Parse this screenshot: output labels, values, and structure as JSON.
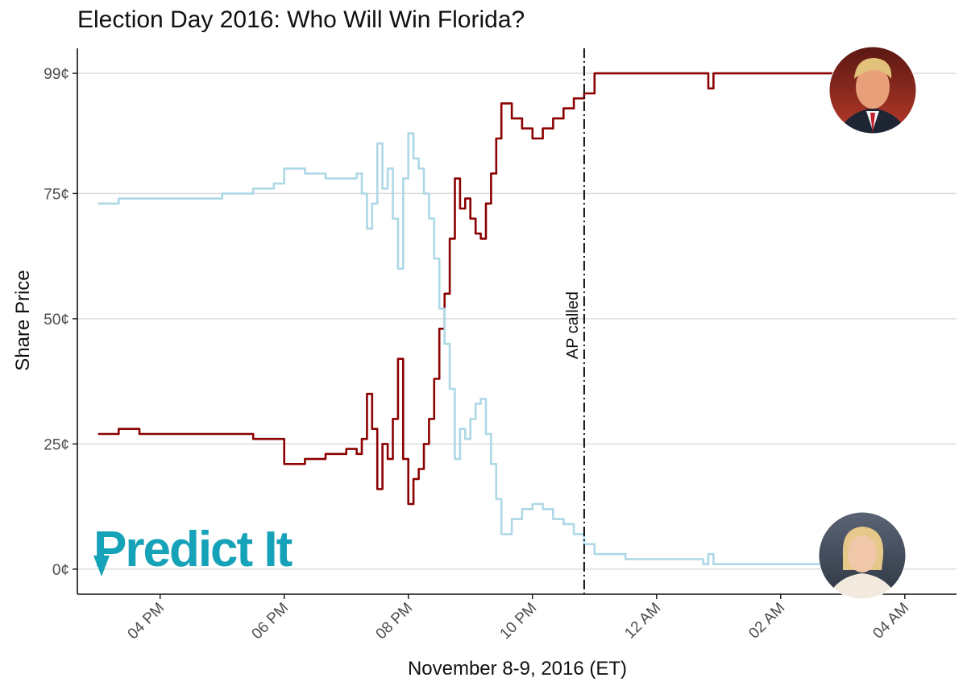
{
  "chart_data": {
    "type": "line",
    "title": "Election Day 2016: Who Will Win Florida?",
    "xlabel": "November 8-9, 2016 (ET)",
    "ylabel": "Share Price",
    "x_unit": "hours ET (Nov 8 15:00 → Nov 9 04:00)",
    "xlim": [
      "2016-11-08 14:40",
      "2016-11-09 04:50"
    ],
    "ylim": [
      -5,
      104
    ],
    "x_ticks": [
      "04 PM",
      "06 PM",
      "08 PM",
      "10 PM",
      "12 AM",
      "02 AM",
      "04 AM"
    ],
    "x_tick_times": [
      "2016-11-08 16:00",
      "2016-11-08 18:00",
      "2016-11-08 20:00",
      "2016-11-08 22:00",
      "2016-11-09 00:00",
      "2016-11-09 02:00",
      "2016-11-09 04:00"
    ],
    "y_ticks": [
      "0¢",
      "25¢",
      "50¢",
      "75¢",
      "99¢"
    ],
    "y_tick_values": [
      0,
      25,
      50,
      75,
      99
    ],
    "grid": "horizontal",
    "legend": "none",
    "series": [
      {
        "color": "#8b0000",
        "points": [
          [
            "2016-11-08 15:00",
            27
          ],
          [
            "2016-11-08 15:20",
            28
          ],
          [
            "2016-11-08 15:40",
            27
          ],
          [
            "2016-11-08 16:00",
            27
          ],
          [
            "2016-11-08 16:30",
            27
          ],
          [
            "2016-11-08 17:00",
            27
          ],
          [
            "2016-11-08 17:30",
            26
          ],
          [
            "2016-11-08 17:50",
            26
          ],
          [
            "2016-11-08 18:00",
            21
          ],
          [
            "2016-11-08 18:20",
            22
          ],
          [
            "2016-11-08 18:40",
            23
          ],
          [
            "2016-11-08 19:00",
            24
          ],
          [
            "2016-11-08 19:10",
            23
          ],
          [
            "2016-11-08 19:15",
            26
          ],
          [
            "2016-11-08 19:20",
            35
          ],
          [
            "2016-11-08 19:25",
            28
          ],
          [
            "2016-11-08 19:30",
            16
          ],
          [
            "2016-11-08 19:35",
            25
          ],
          [
            "2016-11-08 19:40",
            22
          ],
          [
            "2016-11-08 19:45",
            30
          ],
          [
            "2016-11-08 19:50",
            42
          ],
          [
            "2016-11-08 19:55",
            22
          ],
          [
            "2016-11-08 20:00",
            13
          ],
          [
            "2016-11-08 20:05",
            18
          ],
          [
            "2016-11-08 20:10",
            20
          ],
          [
            "2016-11-08 20:15",
            25
          ],
          [
            "2016-11-08 20:20",
            30
          ],
          [
            "2016-11-08 20:25",
            38
          ],
          [
            "2016-11-08 20:30",
            48
          ],
          [
            "2016-11-08 20:35",
            55
          ],
          [
            "2016-11-08 20:40",
            66
          ],
          [
            "2016-11-08 20:45",
            78
          ],
          [
            "2016-11-08 20:50",
            72
          ],
          [
            "2016-11-08 20:55",
            74
          ],
          [
            "2016-11-08 21:00",
            70
          ],
          [
            "2016-11-08 21:05",
            67
          ],
          [
            "2016-11-08 21:10",
            66
          ],
          [
            "2016-11-08 21:15",
            73
          ],
          [
            "2016-11-08 21:20",
            79
          ],
          [
            "2016-11-08 21:25",
            86
          ],
          [
            "2016-11-08 21:30",
            93
          ],
          [
            "2016-11-08 21:40",
            90
          ],
          [
            "2016-11-08 21:50",
            88
          ],
          [
            "2016-11-08 22:00",
            86
          ],
          [
            "2016-11-08 22:10",
            88
          ],
          [
            "2016-11-08 22:20",
            90
          ],
          [
            "2016-11-08 22:30",
            92
          ],
          [
            "2016-11-08 22:40",
            94
          ],
          [
            "2016-11-08 22:50",
            95
          ],
          [
            "2016-11-08 23:00",
            99
          ],
          [
            "2016-11-08 23:30",
            99
          ],
          [
            "2016-11-09 00:00",
            99
          ],
          [
            "2016-11-09 00:45",
            99
          ],
          [
            "2016-11-09 00:50",
            96
          ],
          [
            "2016-11-09 00:55",
            99
          ],
          [
            "2016-11-09 01:00",
            99
          ],
          [
            "2016-11-09 02:00",
            99
          ],
          [
            "2016-11-09 03:00",
            99
          ],
          [
            "2016-11-09 03:40",
            99
          ]
        ]
      },
      {
        "color": "#add8e6",
        "points": [
          [
            "2016-11-08 15:00",
            73
          ],
          [
            "2016-11-08 15:20",
            74
          ],
          [
            "2016-11-08 15:40",
            74
          ],
          [
            "2016-11-08 16:00",
            74
          ],
          [
            "2016-11-08 16:30",
            74
          ],
          [
            "2016-11-08 17:00",
            75
          ],
          [
            "2016-11-08 17:30",
            76
          ],
          [
            "2016-11-08 17:50",
            77
          ],
          [
            "2016-11-08 18:00",
            80
          ],
          [
            "2016-11-08 18:20",
            79
          ],
          [
            "2016-11-08 18:40",
            78
          ],
          [
            "2016-11-08 19:00",
            78
          ],
          [
            "2016-11-08 19:10",
            79
          ],
          [
            "2016-11-08 19:15",
            75
          ],
          [
            "2016-11-08 19:20",
            68
          ],
          [
            "2016-11-08 19:25",
            73
          ],
          [
            "2016-11-08 19:30",
            85
          ],
          [
            "2016-11-08 19:35",
            76
          ],
          [
            "2016-11-08 19:40",
            80
          ],
          [
            "2016-11-08 19:45",
            70
          ],
          [
            "2016-11-08 19:50",
            60
          ],
          [
            "2016-11-08 19:55",
            78
          ],
          [
            "2016-11-08 20:00",
            87
          ],
          [
            "2016-11-08 20:05",
            82
          ],
          [
            "2016-11-08 20:10",
            80
          ],
          [
            "2016-11-08 20:15",
            75
          ],
          [
            "2016-11-08 20:20",
            70
          ],
          [
            "2016-11-08 20:25",
            62
          ],
          [
            "2016-11-08 20:30",
            52
          ],
          [
            "2016-11-08 20:35",
            45
          ],
          [
            "2016-11-08 20:40",
            36
          ],
          [
            "2016-11-08 20:45",
            22
          ],
          [
            "2016-11-08 20:50",
            28
          ],
          [
            "2016-11-08 20:55",
            26
          ],
          [
            "2016-11-08 21:00",
            30
          ],
          [
            "2016-11-08 21:05",
            33
          ],
          [
            "2016-11-08 21:10",
            34
          ],
          [
            "2016-11-08 21:15",
            27
          ],
          [
            "2016-11-08 21:20",
            21
          ],
          [
            "2016-11-08 21:25",
            14
          ],
          [
            "2016-11-08 21:30",
            7
          ],
          [
            "2016-11-08 21:40",
            10
          ],
          [
            "2016-11-08 21:50",
            12
          ],
          [
            "2016-11-08 22:00",
            13
          ],
          [
            "2016-11-08 22:10",
            12
          ],
          [
            "2016-11-08 22:20",
            10
          ],
          [
            "2016-11-08 22:30",
            9
          ],
          [
            "2016-11-08 22:40",
            7
          ],
          [
            "2016-11-08 22:50",
            5
          ],
          [
            "2016-11-08 23:00",
            3
          ],
          [
            "2016-11-08 23:30",
            2
          ],
          [
            "2016-11-09 00:00",
            2
          ],
          [
            "2016-11-09 00:45",
            1
          ],
          [
            "2016-11-09 00:50",
            3
          ],
          [
            "2016-11-09 00:55",
            1
          ],
          [
            "2016-11-09 01:00",
            1
          ],
          [
            "2016-11-09 02:00",
            1
          ],
          [
            "2016-11-09 03:00",
            2
          ],
          [
            "2016-11-09 03:40",
            1
          ]
        ]
      }
    ],
    "annotations": [
      {
        "text": "AP called",
        "x": "2016-11-08 22:50",
        "style": "dashed vertical line"
      }
    ]
  },
  "logo": {
    "text": "Predict It"
  },
  "portraits": [
    {
      "subject": "donald-trump",
      "position": "top-right"
    },
    {
      "subject": "hillary-clinton",
      "position": "bottom-right"
    }
  ]
}
